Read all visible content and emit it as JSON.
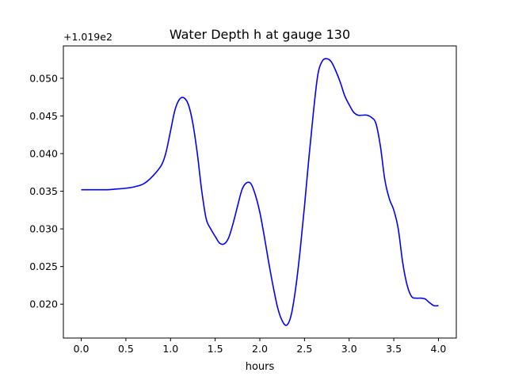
{
  "chart_data": {
    "type": "line",
    "title": "Water Depth h at gauge 130",
    "xlabel": "hours",
    "ylabel": "",
    "y_offset_label": "+1.019e2",
    "xlim": [
      -0.2,
      4.2
    ],
    "ylim": [
      0.0155,
      0.0543
    ],
    "x_ticks": [
      0.0,
      0.5,
      1.0,
      1.5,
      2.0,
      2.5,
      3.0,
      3.5,
      4.0
    ],
    "x_tick_labels": [
      "0.0",
      "0.5",
      "1.0",
      "1.5",
      "2.0",
      "2.5",
      "3.0",
      "3.5",
      "4.0"
    ],
    "y_ticks": [
      0.02,
      0.025,
      0.03,
      0.035,
      0.04,
      0.045,
      0.05
    ],
    "y_tick_labels": [
      "0.020",
      "0.025",
      "0.030",
      "0.035",
      "0.040",
      "0.045",
      "0.050"
    ],
    "grid": false,
    "series": [
      {
        "color": "#0000ff",
        "x": [
          0.0,
          0.1,
          0.2,
          0.3,
          0.4,
          0.5,
          0.6,
          0.7,
          0.8,
          0.9,
          0.95,
          1.0,
          1.05,
          1.1,
          1.15,
          1.2,
          1.25,
          1.3,
          1.35,
          1.4,
          1.45,
          1.5,
          1.55,
          1.6,
          1.65,
          1.7,
          1.75,
          1.8,
          1.85,
          1.9,
          1.95,
          2.0,
          2.05,
          2.1,
          2.15,
          2.2,
          2.25,
          2.3,
          2.35,
          2.4,
          2.45,
          2.5,
          2.55,
          2.6,
          2.65,
          2.7,
          2.75,
          2.8,
          2.85,
          2.9,
          2.95,
          3.0,
          3.05,
          3.1,
          3.15,
          3.2,
          3.25,
          3.3,
          3.35,
          3.4,
          3.45,
          3.5,
          3.55,
          3.6,
          3.65,
          3.7,
          3.75,
          3.8,
          3.85,
          3.9,
          3.95,
          4.0
        ],
        "y": [
          0.0352,
          0.0352,
          0.0352,
          0.0352,
          0.0353,
          0.0354,
          0.0356,
          0.036,
          0.037,
          0.0385,
          0.0402,
          0.043,
          0.0458,
          0.0472,
          0.0474,
          0.0465,
          0.044,
          0.04,
          0.035,
          0.0313,
          0.03,
          0.029,
          0.0281,
          0.028,
          0.0288,
          0.0307,
          0.033,
          0.0352,
          0.0361,
          0.036,
          0.0345,
          0.0322,
          0.029,
          0.0255,
          0.0223,
          0.0195,
          0.0178,
          0.0172,
          0.0185,
          0.022,
          0.027,
          0.033,
          0.0395,
          0.0455,
          0.0505,
          0.0523,
          0.0526,
          0.0522,
          0.051,
          0.0495,
          0.0477,
          0.0465,
          0.0455,
          0.0451,
          0.0451,
          0.0451,
          0.0448,
          0.044,
          0.041,
          0.0365,
          0.034,
          0.0325,
          0.03,
          0.0255,
          0.0225,
          0.021,
          0.0208,
          0.0208,
          0.0207,
          0.0202,
          0.0198,
          0.0198
        ]
      }
    ]
  }
}
